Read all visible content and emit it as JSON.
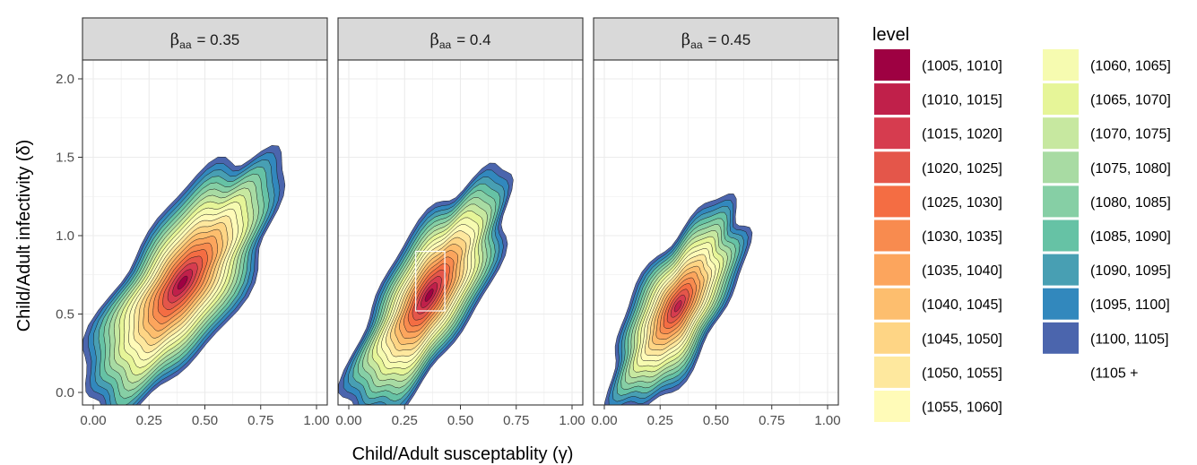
{
  "chart_data": {
    "type": "filled-contour",
    "xlabel": "Child/Adult susceptablity (γ)",
    "ylabel": "Child/Adult infectivity (δ)",
    "xlim": [
      0,
      1
    ],
    "ylim": [
      0,
      2
    ],
    "x_ticks": [
      "0.00",
      "0.25",
      "0.50",
      "0.75",
      "1.00"
    ],
    "y_ticks": [
      "0.0",
      "0.5",
      "1.0",
      "1.5",
      "2.0"
    ],
    "grid": true,
    "facet_label_prefix": "β",
    "facet_label_sub": "aa",
    "facets": [
      {
        "label": "= 0.35",
        "beta_aa": 0.35,
        "center": [
          0.4,
          0.7
        ],
        "spread": [
          0.3,
          0.85
        ],
        "tilt": -0.55,
        "peak_band": 0
      },
      {
        "label": "= 0.4",
        "beta_aa": 0.4,
        "center": [
          0.36,
          0.62
        ],
        "spread": [
          0.24,
          0.8
        ],
        "tilt": -0.5,
        "peak_band": 0,
        "highlight_box": {
          "x": [
            0.3,
            0.43
          ],
          "y": [
            0.52,
            0.9
          ]
        }
      },
      {
        "label": "= 0.45",
        "beta_aa": 0.45,
        "center": [
          0.33,
          0.55
        ],
        "spread": [
          0.22,
          0.68
        ],
        "tilt": -0.45,
        "peak_band": 1
      }
    ],
    "legend": {
      "title": "level",
      "position": "right",
      "levels": [
        {
          "label": "(1005, 1010]",
          "color": "#9e0142"
        },
        {
          "label": "(1010, 1015]",
          "color": "#c0204a"
        },
        {
          "label": "(1015, 1020]",
          "color": "#d63c4f"
        },
        {
          "label": "(1020, 1025]",
          "color": "#e4564a"
        },
        {
          "label": "(1025, 1030]",
          "color": "#f46d43"
        },
        {
          "label": "(1030, 1035]",
          "color": "#f88b4f"
        },
        {
          "label": "(1035, 1040]",
          "color": "#fca55d"
        },
        {
          "label": "(1040, 1045]",
          "color": "#fdbe6e"
        },
        {
          "label": "(1045, 1050]",
          "color": "#fed585"
        },
        {
          "label": "(1050, 1055]",
          "color": "#fee89e"
        },
        {
          "label": "(1055, 1060]",
          "color": "#fffbb8"
        },
        {
          "label": "(1060, 1065]",
          "color": "#f6fbb0"
        },
        {
          "label": "(1065, 1070]",
          "color": "#e6f598"
        },
        {
          "label": "(1070, 1075]",
          "color": "#c7e8a0"
        },
        {
          "label": "(1075, 1080]",
          "color": "#a8dba3"
        },
        {
          "label": "(1080, 1085]",
          "color": "#86cfa5"
        },
        {
          "label": "(1085, 1090]",
          "color": "#66c2a5"
        },
        {
          "label": "(1090, 1095]",
          "color": "#489fb3"
        },
        {
          "label": "(1095, 1100]",
          "color": "#3288bd"
        },
        {
          "label": "(1100, 1105]",
          "color": "#4b65ad"
        },
        {
          "label": "(1105 +",
          "color": ""
        }
      ]
    }
  }
}
